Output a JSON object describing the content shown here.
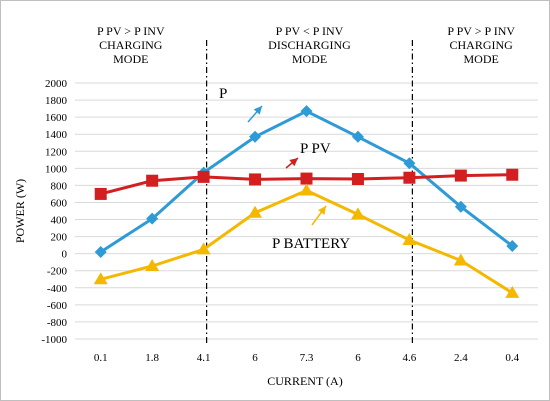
{
  "chart_data": {
    "type": "line",
    "xlabel": "CURRENT (A)",
    "ylabel": "POWER (W)",
    "ylim": [
      -1000,
      2000
    ],
    "ytick_step": 200,
    "grid": "horizontal",
    "categories": [
      "0.1",
      "1.8",
      "4.1",
      "6",
      "7.3",
      "6",
      "4.6",
      "2.4",
      "0.4"
    ],
    "series": [
      {
        "name": "P",
        "color": "#2E9BD6",
        "marker": "diamond",
        "values": [
          20,
          410,
          950,
          1370,
          1670,
          1370,
          1060,
          550,
          90
        ]
      },
      {
        "name": "P PV",
        "color": "#D31F1F",
        "marker": "square",
        "values": [
          700,
          855,
          900,
          870,
          880,
          875,
          890,
          915,
          925
        ]
      },
      {
        "name": "P BATTERY",
        "color": "#F5B800",
        "marker": "triangle",
        "values": [
          -300,
          -145,
          50,
          480,
          740,
          460,
          160,
          -80,
          -460
        ]
      }
    ],
    "regions": [
      {
        "lines": [
          "P PV > P INV",
          "CHARGING",
          "MODE"
        ]
      },
      {
        "lines": [
          "P PV < P INV",
          "DISCHARGING",
          "MODE"
        ]
      },
      {
        "lines": [
          "P PV > P INV",
          "CHARGING",
          "MODE"
        ]
      }
    ],
    "region_boundaries_after_category": [
      2,
      6
    ]
  }
}
